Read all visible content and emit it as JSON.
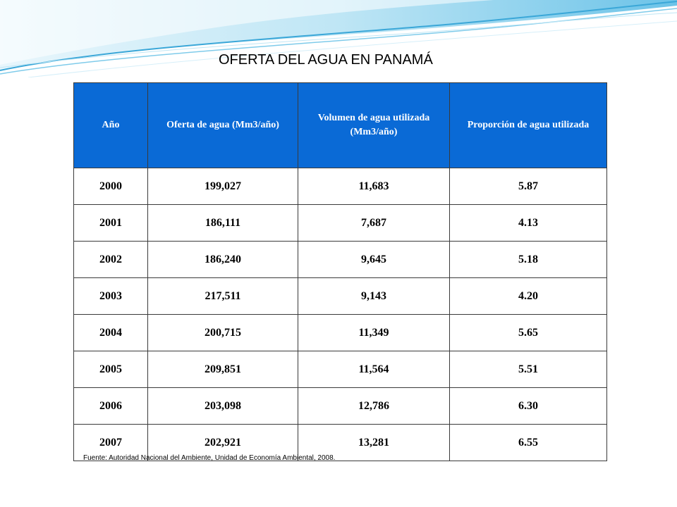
{
  "title": "OFERTA DEL AGUA EN PANAMÁ",
  "table": {
    "headers": [
      "Año",
      "Oferta de agua (Mm3/año)",
      "Volumen de agua utilizada (Mm3/año)",
      "Proporción de agua utilizada"
    ],
    "rows": [
      [
        "2000",
        "199,027",
        "11,683",
        "5.87"
      ],
      [
        "2001",
        "186,111",
        "7,687",
        "4.13"
      ],
      [
        "2002",
        "186,240",
        "9,645",
        "5.18"
      ],
      [
        "2003",
        "217,511",
        "9,143",
        "4.20"
      ],
      [
        "2004",
        "200,715",
        "11,349",
        "5.65"
      ],
      [
        "2005",
        "209,851",
        "11,564",
        "5.51"
      ],
      [
        "2006",
        "203,098",
        "12,786",
        "6.30"
      ],
      [
        "2007",
        "202,921",
        "13,281",
        "6.55"
      ]
    ]
  },
  "source": "Fuente: Autoridad Nacional del Ambiente, Unidad de Economía Ambiental, 2008.",
  "colors": {
    "header_bg": "#0a6ad6",
    "header_text": "#ffffff",
    "wave_light": "#bfe6f5",
    "wave_mid": "#7fcbea",
    "wave_dark": "#3aa7d8"
  }
}
